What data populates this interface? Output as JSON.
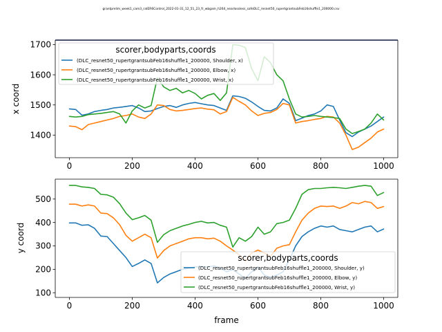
{
  "suptitle": "grantprelim_week1_cam3_ratER6Control_2022-01-31_12_51_23_fr_wbgam_h264_nearlossless_safeDLC_resnet50_rupertgrantsubFeb16shuffle1_200000.csv",
  "colors": {
    "shoulder": "#1f77b4",
    "elbow": "#ff7f0e",
    "wrist": "#2ca02c"
  },
  "chart_data": [
    {
      "type": "line",
      "title": "",
      "xlabel": "",
      "ylabel": "x coord",
      "xlim": [
        -45,
        1045
      ],
      "ylim": [
        1325,
        1715
      ],
      "xticks": [
        0,
        200,
        400,
        600,
        800,
        1000
      ],
      "yticks": [
        1400,
        1500,
        1600,
        1700
      ],
      "grid": false,
      "legend": {
        "title": "scorer,bodyparts,coords",
        "location": "upper left",
        "entries": [
          "(DLC_resnet50_rupertgrantsubFeb16shuffle1_200000, Shoulder, x)",
          "(DLC_resnet50_rupertgrantsubFeb16shuffle1_200000, Elbow, x)",
          "(DLC_resnet50_rupertgrantsubFeb16shuffle1_200000, Wrist, x)"
        ]
      },
      "series": [
        {
          "name": "(DLC_resnet50_rupertgrantsubFeb16shuffle1_200000, Shoulder, x)",
          "color": "#1f77b4",
          "x": [
            0,
            20,
            40,
            60,
            80,
            100,
            120,
            140,
            160,
            180,
            200,
            220,
            240,
            260,
            280,
            300,
            320,
            340,
            360,
            380,
            400,
            420,
            440,
            460,
            480,
            500,
            520,
            540,
            560,
            580,
            600,
            620,
            640,
            660,
            680,
            700,
            720,
            740,
            760,
            780,
            800,
            820,
            840,
            860,
            880,
            900,
            920,
            940,
            960,
            980,
            1000
          ],
          "y": [
            1487,
            1485,
            1466,
            1470,
            1478,
            1482,
            1485,
            1490,
            1492,
            1495,
            1498,
            1490,
            1478,
            1480,
            1488,
            1495,
            1498,
            1492,
            1500,
            1505,
            1508,
            1504,
            1500,
            1498,
            1490,
            1482,
            1530,
            1528,
            1522,
            1510,
            1495,
            1482,
            1480,
            1490,
            1520,
            1505,
            1448,
            1456,
            1465,
            1470,
            1480,
            1500,
            1495,
            1450,
            1408,
            1395,
            1410,
            1420,
            1430,
            1445,
            1460
          ]
        },
        {
          "name": "(DLC_resnet50_rupertgrantsubFeb16shuffle1_200000, Elbow, x)",
          "color": "#ff7f0e",
          "x": [
            0,
            20,
            40,
            60,
            80,
            100,
            120,
            140,
            160,
            180,
            200,
            220,
            240,
            260,
            280,
            300,
            320,
            340,
            360,
            380,
            400,
            420,
            440,
            460,
            480,
            500,
            520,
            540,
            560,
            580,
            600,
            620,
            640,
            660,
            680,
            700,
            720,
            740,
            760,
            780,
            800,
            820,
            840,
            860,
            880,
            900,
            920,
            940,
            960,
            980,
            1000
          ],
          "y": [
            1430,
            1428,
            1418,
            1435,
            1440,
            1445,
            1450,
            1455,
            1462,
            1465,
            1470,
            1460,
            1455,
            1470,
            1500,
            1498,
            1485,
            1480,
            1482,
            1485,
            1488,
            1490,
            1486,
            1484,
            1470,
            1478,
            1525,
            1512,
            1500,
            1480,
            1465,
            1472,
            1475,
            1485,
            1505,
            1500,
            1440,
            1445,
            1448,
            1452,
            1455,
            1462,
            1460,
            1440,
            1400,
            1352,
            1360,
            1375,
            1390,
            1410,
            1420
          ]
        },
        {
          "name": "(DLC_resnet50_rupertgrantsubFeb16shuffle1_200000, Wrist, x)",
          "color": "#2ca02c",
          "x": [
            0,
            20,
            40,
            60,
            80,
            100,
            120,
            140,
            160,
            180,
            200,
            220,
            240,
            260,
            280,
            300,
            320,
            340,
            360,
            380,
            400,
            420,
            440,
            460,
            480,
            500,
            520,
            540,
            560,
            580,
            600,
            620,
            640,
            660,
            680,
            700,
            720,
            740,
            760,
            780,
            800,
            820,
            840,
            860,
            880,
            900,
            920,
            940,
            960,
            980,
            1000
          ],
          "y": [
            1462,
            1460,
            1462,
            1468,
            1470,
            1472,
            1475,
            1478,
            1470,
            1440,
            1480,
            1500,
            1490,
            1498,
            1590,
            1560,
            1548,
            1555,
            1540,
            1548,
            1538,
            1520,
            1532,
            1538,
            1515,
            1540,
            1700,
            1698,
            1690,
            1620,
            1580,
            1660,
            1640,
            1600,
            1580,
            1520,
            1470,
            1460,
            1462,
            1465,
            1462,
            1460,
            1458,
            1455,
            1420,
            1405,
            1412,
            1420,
            1440,
            1470,
            1450
          ]
        }
      ]
    },
    {
      "type": "line",
      "title": "",
      "xlabel": "frame",
      "ylabel": "y coord",
      "xlim": [
        -45,
        1045
      ],
      "ylim": [
        80,
        585
      ],
      "xticks": [
        0,
        200,
        400,
        600,
        800,
        1000
      ],
      "yticks": [
        100,
        200,
        300,
        400,
        500
      ],
      "grid": false,
      "legend": {
        "title": "scorer,bodyparts,coords",
        "location": "lower right",
        "entries": [
          "(DLC_resnet50_rupertgrantsubFeb16shuffle1_200000, Shoulder, y)",
          "(DLC_resnet50_rupertgrantsubFeb16shuffle1_200000, Elbow, y)",
          "(DLC_resnet50_rupertgrantsubFeb16shuffle1_200000, Wrist, y)"
        ]
      },
      "series": [
        {
          "name": "(DLC_resnet50_rupertgrantsubFeb16shuffle1_200000, Shoulder, y)",
          "color": "#1f77b4",
          "x": [
            0,
            20,
            40,
            60,
            80,
            100,
            120,
            140,
            160,
            180,
            200,
            220,
            240,
            260,
            280,
            300,
            320,
            340,
            360,
            380,
            400,
            420,
            440,
            460,
            480,
            500,
            520,
            540,
            560,
            580,
            600,
            620,
            640,
            660,
            680,
            700,
            720,
            740,
            760,
            780,
            800,
            820,
            840,
            860,
            880,
            900,
            920,
            940,
            960,
            980,
            1000
          ],
          "y": [
            398,
            398,
            388,
            390,
            375,
            342,
            340,
            310,
            280,
            250,
            212,
            225,
            240,
            225,
            142,
            165,
            180,
            190,
            200,
            205,
            210,
            212,
            210,
            215,
            205,
            190,
            198,
            180,
            160,
            190,
            210,
            175,
            165,
            175,
            190,
            240,
            300,
            340,
            360,
            375,
            385,
            380,
            385,
            370,
            365,
            360,
            370,
            380,
            385,
            360,
            372
          ]
        },
        {
          "name": "(DLC_resnet50_rupertgrantsubFeb16shuffle1_200000, Elbow, y)",
          "color": "#ff7f0e",
          "x": [
            0,
            20,
            40,
            60,
            80,
            100,
            120,
            140,
            160,
            180,
            200,
            220,
            240,
            260,
            280,
            300,
            320,
            340,
            360,
            380,
            400,
            420,
            440,
            460,
            480,
            500,
            520,
            540,
            560,
            580,
            600,
            620,
            640,
            660,
            680,
            700,
            720,
            740,
            760,
            780,
            800,
            820,
            840,
            860,
            880,
            900,
            920,
            940,
            960,
            980,
            1000
          ],
          "y": [
            478,
            478,
            470,
            475,
            470,
            440,
            438,
            420,
            390,
            345,
            320,
            335,
            350,
            335,
            248,
            280,
            300,
            310,
            320,
            330,
            335,
            335,
            330,
            333,
            320,
            300,
            282,
            262,
            235,
            270,
            282,
            270,
            255,
            290,
            300,
            305,
            360,
            410,
            440,
            460,
            470,
            468,
            470,
            460,
            470,
            485,
            480,
            490,
            485,
            460,
            468
          ]
        },
        {
          "name": "(DLC_resnet50_rupertgrantsubFeb16shuffle1_200000, Wrist, y)",
          "color": "#2ca02c",
          "x": [
            0,
            20,
            40,
            60,
            80,
            100,
            120,
            140,
            160,
            180,
            200,
            220,
            240,
            260,
            280,
            300,
            320,
            340,
            360,
            380,
            400,
            420,
            440,
            460,
            480,
            500,
            520,
            540,
            560,
            580,
            600,
            620,
            640,
            660,
            680,
            700,
            720,
            740,
            760,
            780,
            800,
            820,
            840,
            860,
            880,
            900,
            920,
            940,
            960,
            980,
            1000
          ],
          "y": [
            558,
            558,
            552,
            550,
            545,
            520,
            518,
            508,
            480,
            440,
            412,
            420,
            430,
            410,
            315,
            348,
            365,
            375,
            385,
            392,
            400,
            405,
            398,
            400,
            388,
            380,
            295,
            335,
            320,
            340,
            380,
            350,
            360,
            395,
            400,
            410,
            460,
            520,
            540,
            545,
            545,
            548,
            550,
            548,
            545,
            550,
            555,
            558,
            555,
            515,
            528
          ]
        }
      ]
    }
  ]
}
